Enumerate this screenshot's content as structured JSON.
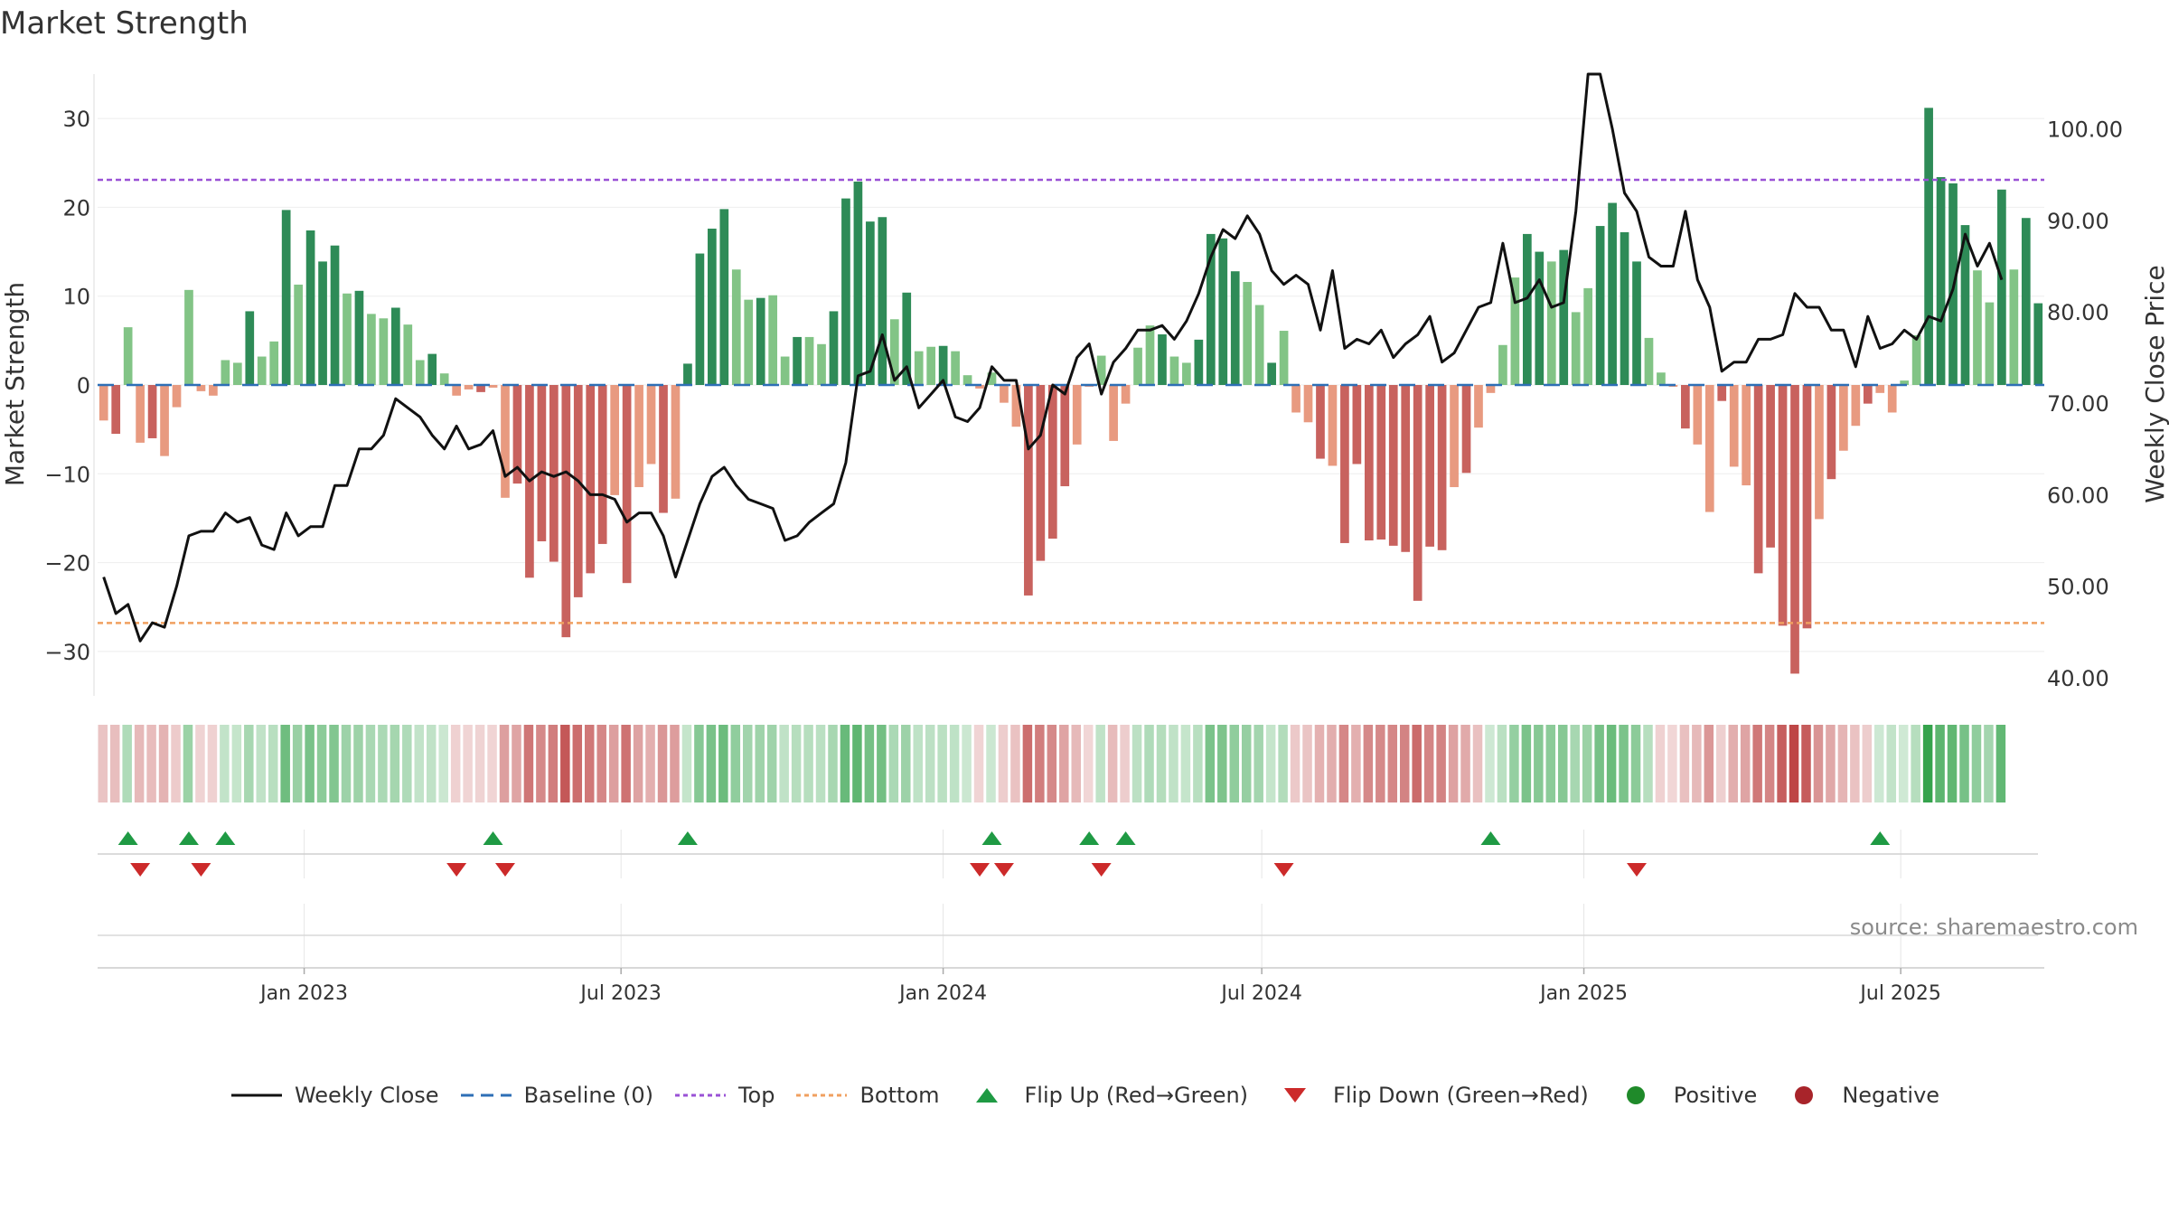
{
  "chart_data": {
    "type": "bar",
    "title": "Market Strength",
    "ylabel": "Market Strength",
    "y2label": "Weekly Close Price",
    "ylim": [
      -35,
      35
    ],
    "y2lim": [
      38,
      106
    ],
    "yticks": [
      -30,
      -20,
      -10,
      0,
      10,
      20,
      30
    ],
    "y2ticks": [
      "40.00",
      "50.00",
      "60.00",
      "70.00",
      "80.00",
      "90.00",
      "100.00"
    ],
    "top_line": 23.1,
    "bottom_line": -26.8,
    "start_date": "2022-09-05",
    "end_date": "2025-09-21",
    "xticks": [
      {
        "date": "2023-01-01",
        "label": "Jan 2023"
      },
      {
        "date": "2023-07-01",
        "label": "Jul 2023"
      },
      {
        "date": "2024-01-01",
        "label": "Jan 2024"
      },
      {
        "date": "2024-07-01",
        "label": "Jul 2024"
      },
      {
        "date": "2025-01-01",
        "label": "Jan 2025"
      },
      {
        "date": "2025-07-01",
        "label": "Jul 2025"
      }
    ],
    "strength": [
      -4,
      -5.5,
      6.5,
      -6.5,
      -6,
      -8,
      -2.5,
      10.7,
      -0.7,
      -1.2,
      2.8,
      2.5,
      8.3,
      3.2,
      4.9,
      19.7,
      11.3,
      17.4,
      13.9,
      15.7,
      10.3,
      10.6,
      8,
      7.5,
      8.7,
      6.8,
      2.8,
      3.5,
      1.3,
      -1.2,
      -0.5,
      -0.8,
      -0.3,
      -12.7,
      -11.1,
      -21.7,
      -17.6,
      -19.9,
      -28.4,
      -23.9,
      -21.2,
      -17.9,
      -12.4,
      -22.3,
      -11.5,
      -8.9,
      -14.4,
      -12.8,
      2.4,
      14.8,
      17.6,
      19.8,
      13,
      9.6,
      9.8,
      10.1,
      3.2,
      5.4,
      5.4,
      4.6,
      8.3,
      21,
      22.9,
      18.4,
      18.9,
      7.4,
      10.4,
      3.8,
      4.3,
      4.4,
      3.8,
      1.1,
      -0.4,
      1.4,
      -2,
      -4.7,
      -23.7,
      -19.8,
      -17.3,
      -11.4,
      -6.7,
      -0.2,
      3.3,
      -6.3,
      -2.1,
      4.2,
      6.7,
      5.7,
      3.2,
      2.5,
      5.1,
      17,
      16.5,
      12.8,
      11.6,
      9,
      2.5,
      6.1,
      -3.1,
      -4.2,
      -8.3,
      -9.1,
      -17.8,
      -8.9,
      -17.5,
      -17.4,
      -18.1,
      -18.8,
      -24.3,
      -18.2,
      -18.6,
      -11.5,
      -9.9,
      -4.8,
      -0.9,
      4.5,
      12.1,
      17,
      15,
      13.9,
      15.2,
      8.2,
      10.9,
      17.9,
      20.5,
      17.2,
      13.9,
      5.3,
      1.4,
      -0.2,
      -4.9,
      -6.7,
      -14.3,
      -1.8,
      -9.2,
      -11.3,
      -21.2,
      -18.3,
      -27.1,
      -32.5,
      -27.4,
      -15.1,
      -10.6,
      -7.4,
      -4.6,
      -2.1,
      -0.9,
      -3.1,
      0.5,
      5.6,
      31.2,
      23.4,
      22.7,
      18,
      12.9,
      9.3,
      22,
      13,
      18.8,
      9.2
    ],
    "close": [
      51,
      47,
      48,
      44,
      46,
      45.5,
      50,
      55.5,
      56,
      56,
      58,
      57,
      57.5,
      54.5,
      54,
      58,
      55.5,
      56.5,
      56.5,
      61,
      61,
      65,
      65,
      66.5,
      70.5,
      69.5,
      68.5,
      66.5,
      65,
      67.5,
      65,
      65.5,
      67,
      62,
      63,
      61.5,
      62.5,
      62,
      62.5,
      61.5,
      60,
      60,
      59.5,
      57,
      58,
      58,
      55.5,
      51,
      55,
      59,
      62,
      63,
      61,
      59.5,
      59,
      58.5,
      55,
      55.5,
      57,
      58,
      59,
      63.5,
      73,
      73.5,
      77.5,
      72.5,
      74,
      69.5,
      71,
      72.5,
      68.5,
      68,
      69.5,
      74,
      72.5,
      72.5,
      65,
      66.5,
      72,
      71,
      75,
      76.5,
      71,
      74.5,
      76,
      78,
      78,
      78.5,
      77,
      79,
      82,
      86,
      89,
      88,
      90.5,
      88.5,
      84.5,
      83,
      84,
      83,
      78,
      84.5,
      76,
      77,
      76.5,
      78,
      75,
      76.5,
      77.5,
      79.5,
      74.5,
      75.5,
      78,
      80.5,
      81,
      87.5,
      81,
      81.5,
      83.5,
      80.5,
      81,
      91,
      106,
      106,
      100,
      93,
      91,
      86,
      85,
      85,
      91,
      83.5,
      80.5,
      73.5,
      74.5,
      74.5,
      77,
      77,
      77.5,
      82,
      80.5,
      80.5,
      78,
      78,
      74,
      79.5,
      76,
      76.5,
      78,
      77,
      79.5,
      79,
      82.5,
      88.5,
      85,
      87.5,
      83.5
    ],
    "states": [
      "n",
      "n",
      "p",
      "n",
      "n",
      "n",
      "n",
      "p",
      "n",
      "n",
      "p",
      "p",
      "p",
      "p",
      "p",
      "p",
      "p",
      "p",
      "p",
      "p",
      "p",
      "p",
      "p",
      "p",
      "p",
      "p",
      "p",
      "p",
      "p",
      "n",
      "n",
      "n",
      "n",
      "n",
      "n",
      "n",
      "n",
      "n",
      "n",
      "n",
      "n",
      "n",
      "n",
      "n",
      "n",
      "n",
      "n",
      "n",
      "p",
      "p",
      "p",
      "p",
      "p",
      "p",
      "p",
      "p",
      "p",
      "p",
      "p",
      "p",
      "p",
      "p",
      "p",
      "p",
      "p",
      "p",
      "p",
      "p",
      "p",
      "p",
      "p",
      "p",
      "n",
      "p",
      "n",
      "n",
      "n",
      "n",
      "n",
      "n",
      "n",
      "n",
      "p",
      "n",
      "n",
      "p",
      "p",
      "p",
      "p",
      "p",
      "p",
      "p",
      "p",
      "p",
      "p",
      "p",
      "p",
      "p",
      "n",
      "n",
      "n",
      "n",
      "n",
      "n",
      "n",
      "n",
      "n",
      "n",
      "n",
      "n",
      "n",
      "n",
      "n",
      "n",
      "p",
      "p",
      "p",
      "p",
      "p",
      "p",
      "p",
      "p",
      "p",
      "p",
      "p",
      "p",
      "p",
      "p",
      "n",
      "n",
      "n",
      "n",
      "n",
      "n",
      "n",
      "n",
      "n",
      "n",
      "n",
      "n",
      "n",
      "n",
      "n",
      "n",
      "n",
      "n",
      "p",
      "p",
      "p",
      "p",
      "p",
      "p",
      "p",
      "p",
      "p",
      "p",
      "p"
    ],
    "flip_up_weeks": [
      2,
      7,
      10,
      32,
      48,
      73,
      81,
      84,
      114,
      146
    ],
    "flip_down_weeks": [
      3,
      8,
      29,
      33,
      72,
      74,
      82,
      97,
      126
    ],
    "series": [
      {
        "name": "Weekly Close",
        "color": "#111111"
      },
      {
        "name": "Baseline (0)",
        "color": "#2e6fb6"
      },
      {
        "name": "Top",
        "color": "#9a52d6"
      },
      {
        "name": "Bottom",
        "color": "#f0a060"
      },
      {
        "name": "Flip Up (Red→Green)",
        "color": "#1f9a44"
      },
      {
        "name": "Flip Down (Green→Red)",
        "color": "#cc2a2a"
      },
      {
        "name": "Positive",
        "color": "#1f8a2a"
      },
      {
        "name": "Negative",
        "color": "#a8242a"
      }
    ],
    "colors": {
      "pos_strong": "#2e8b57",
      "pos_light": "#82c486",
      "neg_strong": "#c8625e",
      "neg_light": "#e89a80"
    },
    "legend_position": "bottom",
    "source_note": "source: sharemaestro.com"
  }
}
